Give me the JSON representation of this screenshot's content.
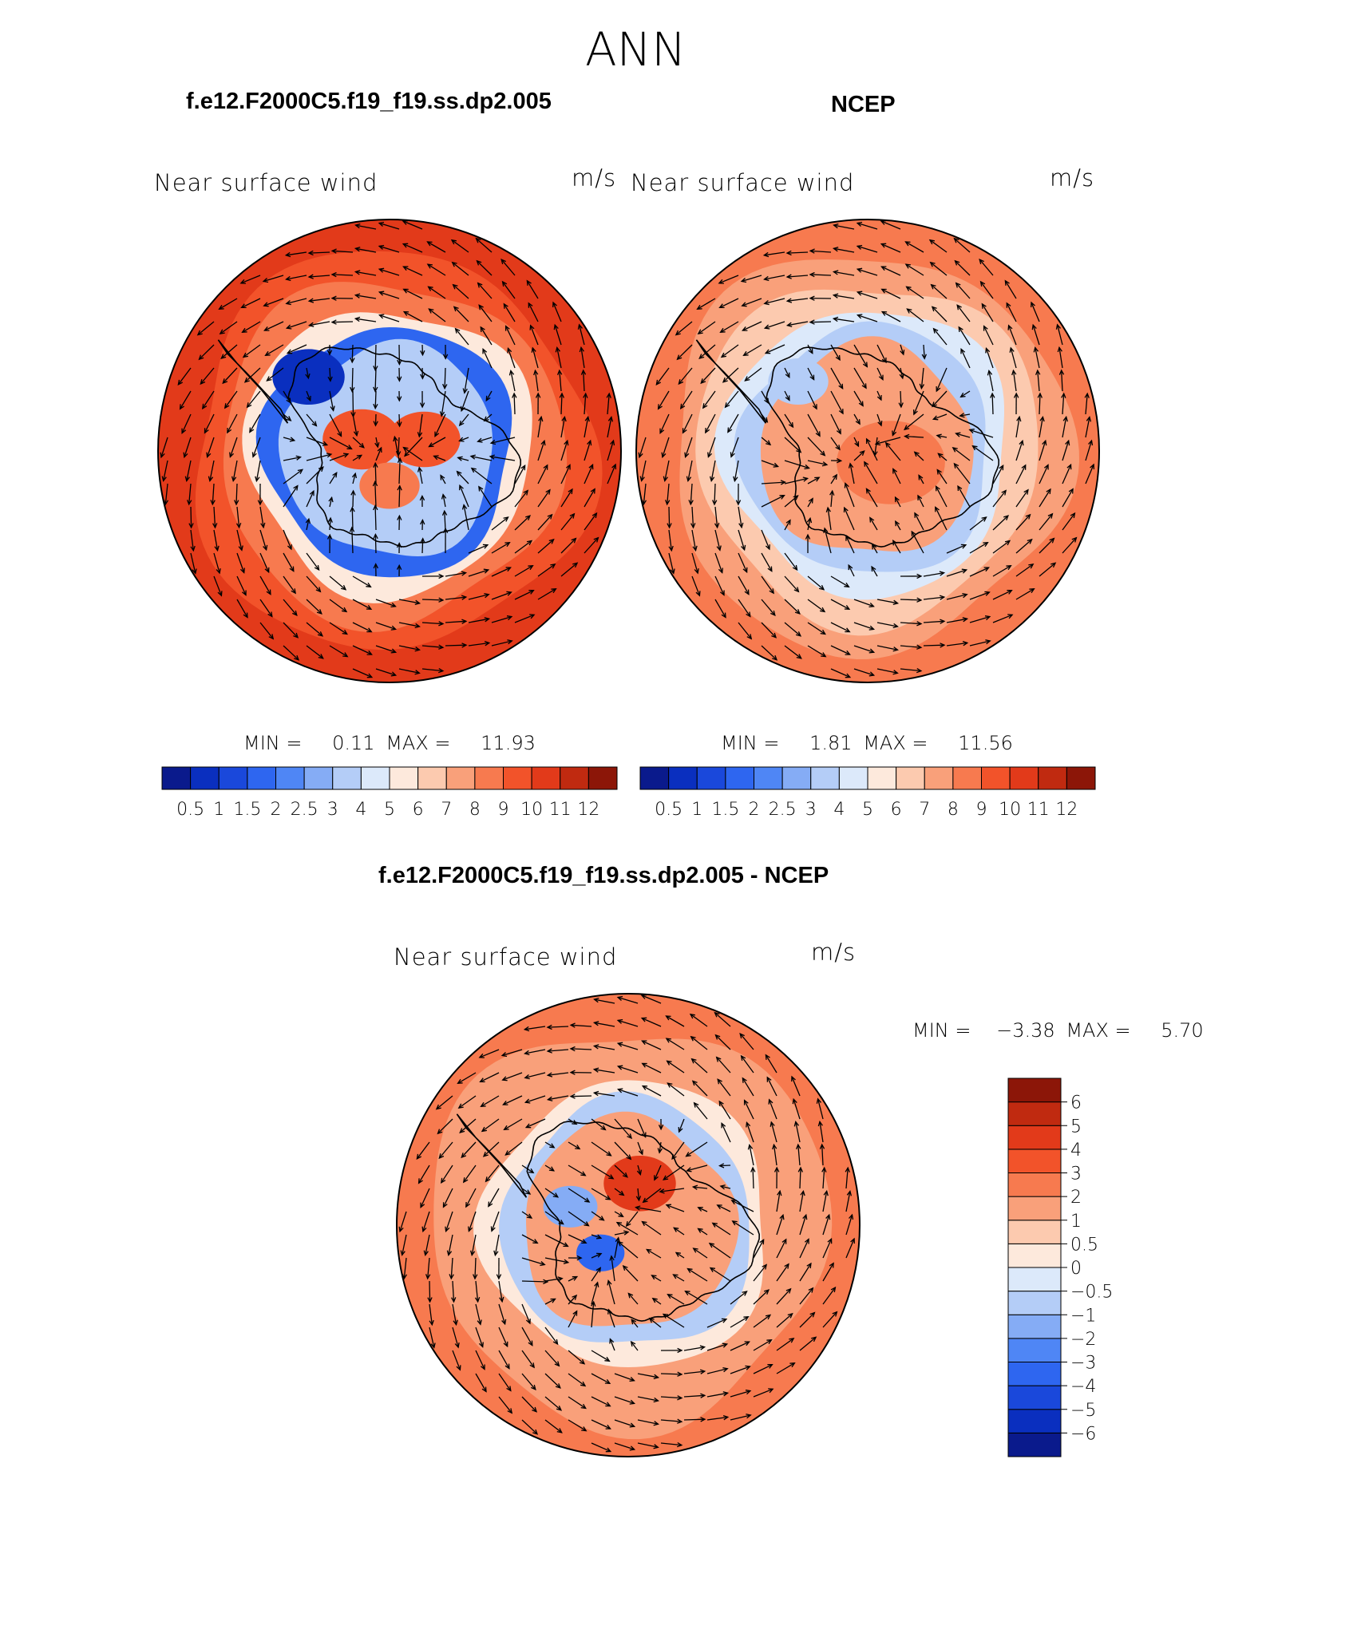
{
  "figure": {
    "season": "ANN"
  },
  "chart_data": [
    {
      "type": "heatmap",
      "projection": "south-polar-stereographic",
      "case": "f.e12.F2000C5.f19_f19.ss.dp2.005",
      "left_label": "Near surface wind",
      "units": "m/s",
      "stats_min_label": "MIN =",
      "stats_max_label": "MAX =",
      "min": "0.11",
      "max": "11.93",
      "contour_levels": [
        0.5,
        1,
        1.5,
        2,
        2.5,
        3,
        4,
        5,
        6,
        7,
        8,
        9,
        10,
        11,
        12
      ],
      "tick_labels": [
        "0.5",
        "1",
        "1.5",
        "2",
        "2.5",
        "3",
        "4",
        "5",
        "6",
        "7",
        "8",
        "9",
        "10",
        "11",
        "12"
      ],
      "colorbar_orientation": "horizontal",
      "ring_values": [
        10.5,
        9.5,
        8.5,
        5.5,
        2.0,
        3.5
      ],
      "has_wind_vectors": true
    },
    {
      "type": "heatmap",
      "projection": "south-polar-stereographic",
      "case": "NCEP",
      "left_label": "Near surface wind",
      "units": "m/s",
      "stats_min_label": "MIN =",
      "stats_max_label": "MAX =",
      "min": "1.81",
      "max": "11.56",
      "contour_levels": [
        0.5,
        1,
        1.5,
        2,
        2.5,
        3,
        4,
        5,
        6,
        7,
        8,
        9,
        10,
        11,
        12
      ],
      "tick_labels": [
        "0.5",
        "1",
        "1.5",
        "2",
        "2.5",
        "3",
        "4",
        "5",
        "6",
        "7",
        "8",
        "9",
        "10",
        "11",
        "12"
      ],
      "colorbar_orientation": "horizontal",
      "ring_values": [
        8.5,
        7.5,
        6.5,
        4.5,
        3.5,
        8.0
      ],
      "has_wind_vectors": true
    },
    {
      "type": "heatmap",
      "projection": "south-polar-stereographic",
      "case": "f.e12.F2000C5.f19_f19.ss.dp2.005 - NCEP",
      "left_label": "Near surface wind",
      "units": "m/s",
      "stats_min_label": "MIN =",
      "stats_max_label": "MAX =",
      "min": "−3.38",
      "max": "5.70",
      "contour_levels": [
        -6,
        -5,
        -4,
        -3,
        -2,
        -1,
        -0.5,
        0,
        0.5,
        1,
        2,
        3,
        4,
        5,
        6
      ],
      "tick_labels": [
        "−6",
        "−5",
        "−4",
        "−3",
        "−2",
        "−1",
        "−0.5",
        "0",
        "0.5",
        "1",
        "2",
        "3",
        "4",
        "5",
        "6"
      ],
      "colorbar_orientation": "vertical",
      "ring_values": [
        2.5,
        2.0,
        1.5,
        0.3,
        -0.8,
        1.5
      ],
      "has_wind_vectors": true
    }
  ],
  "colors": {
    "palette": [
      "#0a1a8c",
      "#0a2fbf",
      "#1a48db",
      "#2e66f0",
      "#4f86f5",
      "#85acf5",
      "#b4cdf7",
      "#dce9fa",
      "#fde9dc",
      "#fccaaf",
      "#f9a07a",
      "#f77a4f",
      "#f2532a",
      "#e23a1a",
      "#c02a10",
      "#8c1608"
    ],
    "coast": "#000000",
    "vector": "#000000"
  }
}
